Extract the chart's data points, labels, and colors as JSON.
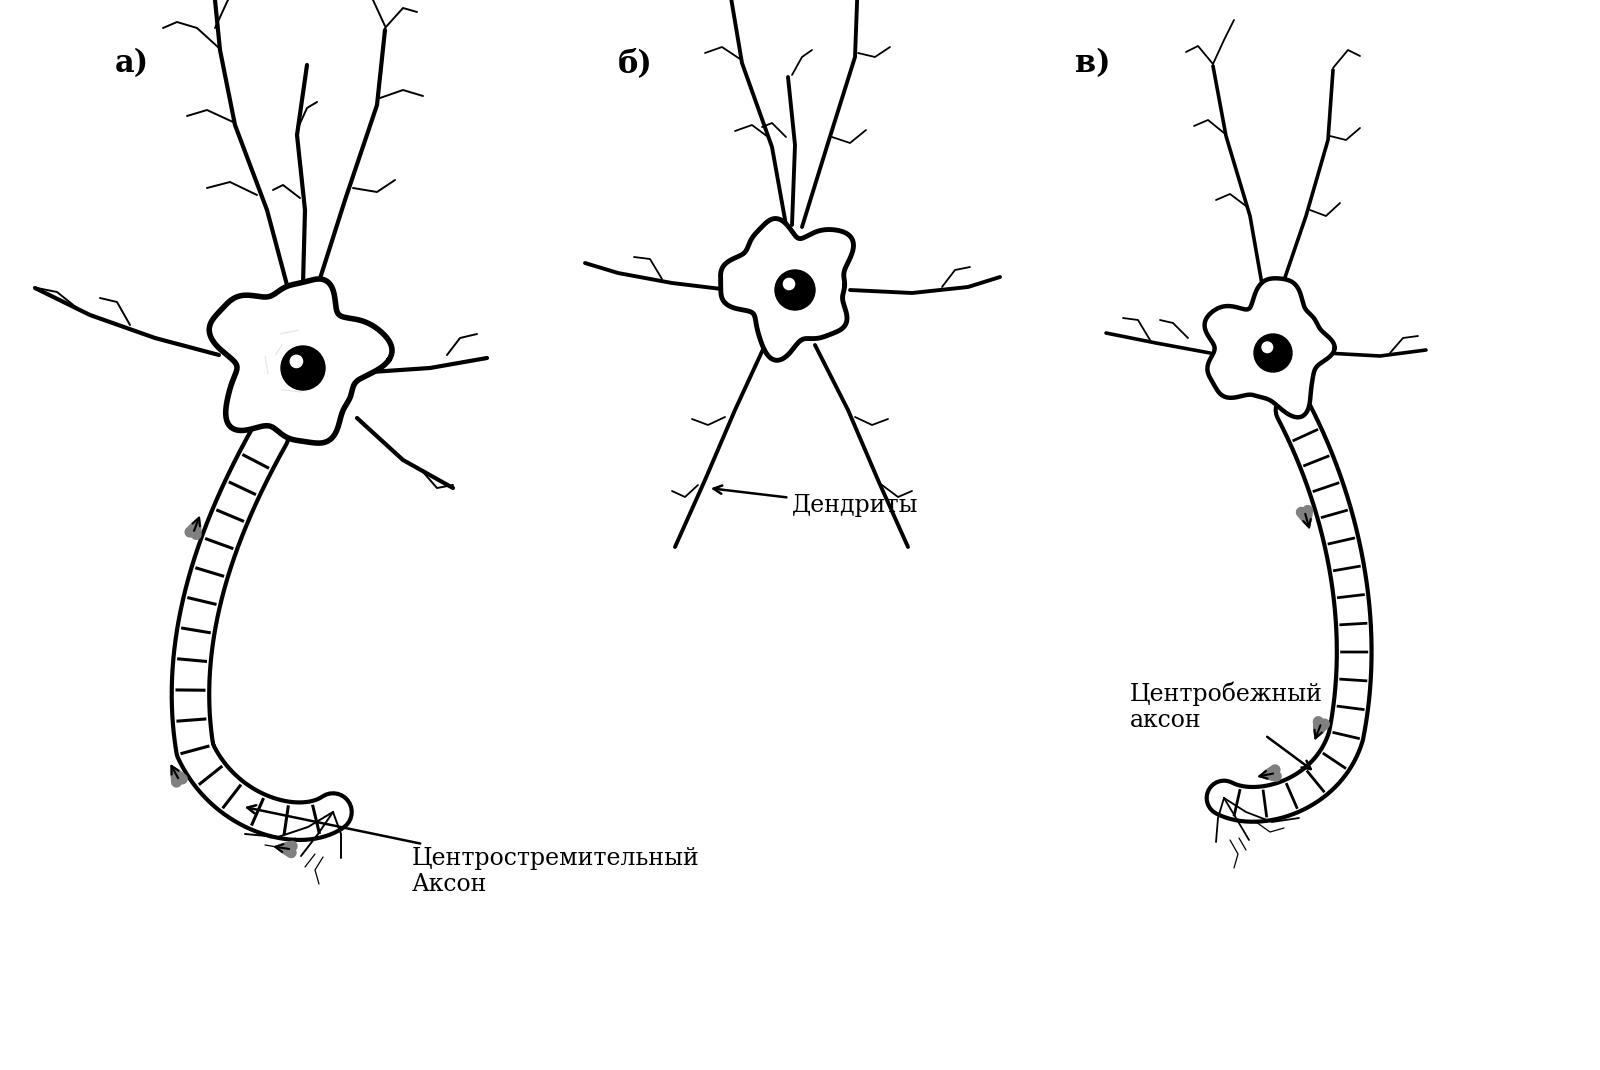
{
  "background_color": "#ffffff",
  "label_a": "а)",
  "label_b": "б)",
  "label_c": "в)",
  "annotation_dendrites": "Дендриты",
  "annotation_centripetal": "Центростремительный\nАксон",
  "annotation_centrifugal": "Центробежный\nаксон",
  "text_color": "#000000",
  "line_color": "#000000"
}
